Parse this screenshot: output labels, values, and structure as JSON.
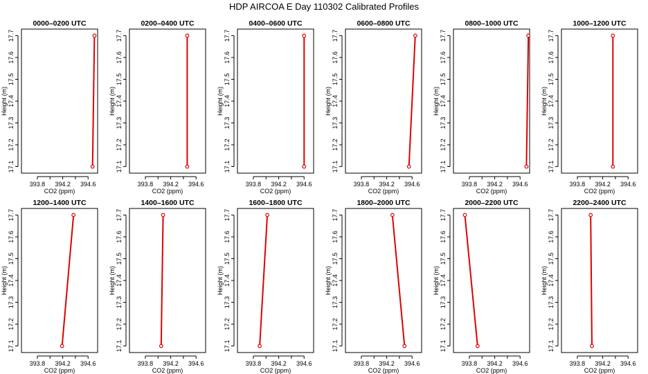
{
  "figure_title": "HDP AIRCOA E  Day 110302  Calibrated Profiles",
  "colors": {
    "line": "#dd0000",
    "marker": "#dd0000",
    "axes": "#000000"
  },
  "chart_data": [
    {
      "type": "line",
      "title": "0000–0200 UTC",
      "xlabel": "CO2 (ppm)",
      "ylabel": "Height (m)",
      "xlim": [
        393.55,
        394.75
      ],
      "ylim": [
        17.07,
        17.73
      ],
      "xticks": [
        "393.8",
        "394.2",
        "394.6"
      ],
      "yticks": [
        "17.1",
        "17.2",
        "17.3",
        "17.4",
        "17.5",
        "17.6",
        "17.7"
      ],
      "series": [
        {
          "x": [
            394.67,
            394.7
          ],
          "y": [
            17.1,
            17.7
          ]
        }
      ]
    },
    {
      "type": "line",
      "title": "0200–0400 UTC",
      "xlabel": "CO2 (ppm)",
      "ylabel": "Height (m)",
      "xlim": [
        393.55,
        394.75
      ],
      "ylim": [
        17.07,
        17.73
      ],
      "xticks": [
        "393.8",
        "394.2",
        "394.6"
      ],
      "yticks": [
        "17.1",
        "17.2",
        "17.3",
        "17.4",
        "17.5",
        "17.6",
        "17.7"
      ],
      "series": [
        {
          "x": [
            394.46,
            394.46
          ],
          "y": [
            17.1,
            17.7
          ]
        }
      ]
    },
    {
      "type": "line",
      "title": "0400–0600 UTC",
      "xlabel": "CO2 (ppm)",
      "ylabel": "Height (m)",
      "xlim": [
        393.55,
        394.75
      ],
      "ylim": [
        17.07,
        17.73
      ],
      "xticks": [
        "393.8",
        "394.2",
        "394.6"
      ],
      "yticks": [
        "17.1",
        "17.2",
        "17.3",
        "17.4",
        "17.5",
        "17.6",
        "17.7"
      ],
      "series": [
        {
          "x": [
            394.6,
            394.6
          ],
          "y": [
            17.1,
            17.7
          ]
        }
      ]
    },
    {
      "type": "line",
      "title": "0600–0800 UTC",
      "xlabel": "CO2 (ppm)",
      "ylabel": "Height (m)",
      "xlim": [
        393.55,
        394.75
      ],
      "ylim": [
        17.07,
        17.73
      ],
      "xticks": [
        "393.8",
        "394.2",
        "394.6"
      ],
      "yticks": [
        "17.1",
        "17.2",
        "17.3",
        "17.4",
        "17.5",
        "17.6",
        "17.7"
      ],
      "series": [
        {
          "x": [
            394.55,
            394.65
          ],
          "y": [
            17.1,
            17.7
          ]
        }
      ]
    },
    {
      "type": "line",
      "title": "0800–1000 UTC",
      "xlabel": "CO2 (ppm)",
      "ylabel": "Height (m)",
      "xlim": [
        393.55,
        394.75
      ],
      "ylim": [
        17.07,
        17.73
      ],
      "xticks": [
        "393.8",
        "394.2",
        "394.6"
      ],
      "yticks": [
        "17.1",
        "17.2",
        "17.3",
        "17.4",
        "17.5",
        "17.6",
        "17.7"
      ],
      "series": [
        {
          "x": [
            394.7,
            394.73
          ],
          "y": [
            17.1,
            17.7
          ]
        }
      ]
    },
    {
      "type": "line",
      "title": "1000–1200 UTC",
      "xlabel": "CO2 (ppm)",
      "ylabel": "Height (m)",
      "xlim": [
        393.55,
        394.75
      ],
      "ylim": [
        17.07,
        17.73
      ],
      "xticks": [
        "393.8",
        "394.2",
        "394.6"
      ],
      "yticks": [
        "17.1",
        "17.2",
        "17.3",
        "17.4",
        "17.5",
        "17.6",
        "17.7"
      ],
      "series": [
        {
          "x": [
            394.36,
            394.36
          ],
          "y": [
            17.1,
            17.7
          ]
        }
      ]
    },
    {
      "type": "line",
      "title": "1200–1400 UTC",
      "xlabel": "CO2 (ppm)",
      "ylabel": "Height (m)",
      "xlim": [
        393.55,
        394.75
      ],
      "ylim": [
        17.07,
        17.73
      ],
      "xticks": [
        "393.8",
        "394.2",
        "394.6"
      ],
      "yticks": [
        "17.1",
        "17.2",
        "17.3",
        "17.4",
        "17.5",
        "17.6",
        "17.7"
      ],
      "series": [
        {
          "x": [
            394.19,
            394.37
          ],
          "y": [
            17.1,
            17.7
          ]
        }
      ]
    },
    {
      "type": "line",
      "title": "1400–1600 UTC",
      "xlabel": "CO2 (ppm)",
      "ylabel": "Height (m)",
      "xlim": [
        393.55,
        394.75
      ],
      "ylim": [
        17.07,
        17.73
      ],
      "xticks": [
        "393.8",
        "394.2",
        "394.6"
      ],
      "yticks": [
        "17.1",
        "17.2",
        "17.3",
        "17.4",
        "17.5",
        "17.6",
        "17.7"
      ],
      "series": [
        {
          "x": [
            394.05,
            394.08
          ],
          "y": [
            17.1,
            17.7
          ]
        }
      ]
    },
    {
      "type": "line",
      "title": "1600–1800 UTC",
      "xlabel": "CO2 (ppm)",
      "ylabel": "Height (m)",
      "xlim": [
        393.55,
        394.75
      ],
      "ylim": [
        17.07,
        17.73
      ],
      "xticks": [
        "393.8",
        "394.2",
        "394.6"
      ],
      "yticks": [
        "17.1",
        "17.2",
        "17.3",
        "17.4",
        "17.5",
        "17.6",
        "17.7"
      ],
      "series": [
        {
          "x": [
            393.9,
            394.02
          ],
          "y": [
            17.1,
            17.7
          ]
        }
      ]
    },
    {
      "type": "line",
      "title": "1800–2000 UTC",
      "xlabel": "CO2 (ppm)",
      "ylabel": "Height (m)",
      "xlim": [
        393.55,
        394.75
      ],
      "ylim": [
        17.07,
        17.73
      ],
      "xticks": [
        "393.8",
        "394.2",
        "394.6"
      ],
      "yticks": [
        "17.1",
        "17.2",
        "17.3",
        "17.4",
        "17.5",
        "17.6",
        "17.7"
      ],
      "series": [
        {
          "x": [
            394.48,
            394.29
          ],
          "y": [
            17.1,
            17.7
          ]
        }
      ]
    },
    {
      "type": "line",
      "title": "2000–2200 UTC",
      "xlabel": "CO2 (ppm)",
      "ylabel": "Height (m)",
      "xlim": [
        393.55,
        394.75
      ],
      "ylim": [
        17.07,
        17.73
      ],
      "xticks": [
        "393.8",
        "394.2",
        "394.6"
      ],
      "yticks": [
        "17.1",
        "17.2",
        "17.3",
        "17.4",
        "17.5",
        "17.6",
        "17.7"
      ],
      "series": [
        {
          "x": [
            393.93,
            393.73
          ],
          "y": [
            17.1,
            17.7
          ]
        }
      ]
    },
    {
      "type": "line",
      "title": "2200–2400 UTC",
      "xlabel": "CO2 (ppm)",
      "ylabel": "Height (m)",
      "xlim": [
        393.55,
        394.75
      ],
      "ylim": [
        17.07,
        17.73
      ],
      "xticks": [
        "393.8",
        "394.2",
        "394.6"
      ],
      "yticks": [
        "17.1",
        "17.2",
        "17.3",
        "17.4",
        "17.5",
        "17.6",
        "17.7"
      ],
      "series": [
        {
          "x": [
            394.03,
            394.01
          ],
          "y": [
            17.1,
            17.7
          ]
        }
      ]
    }
  ]
}
